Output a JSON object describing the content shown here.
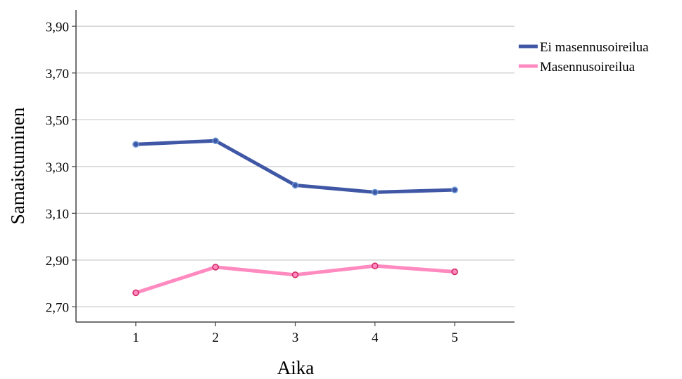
{
  "chart_data": {
    "type": "line",
    "x": [
      1,
      2,
      3,
      4,
      5
    ],
    "categories": [
      "1",
      "2",
      "3",
      "4",
      "5"
    ],
    "series": [
      {
        "name": "Ei masennusoireilua",
        "values": [
          3.395,
          3.41,
          3.22,
          3.19,
          3.2
        ],
        "color": "#3F57A5",
        "marker_color": "#6D9BD8"
      },
      {
        "name": "Masennusoireilua",
        "values": [
          2.76,
          2.87,
          2.837,
          2.875,
          2.85
        ],
        "color": "#FF8AC0",
        "marker_color": "#D1245E"
      }
    ],
    "yticks": [
      "2,70",
      "2,90",
      "3,10",
      "3,30",
      "3,50",
      "3,70",
      "3,90"
    ],
    "ytick_values": [
      2.7,
      2.9,
      3.1,
      3.3,
      3.5,
      3.7,
      3.9
    ],
    "xlabel": "Aika",
    "ylabel": "Samaistuminen",
    "ylim": [
      2.635,
      3.97
    ],
    "xlim": [
      0.25,
      5.75
    ],
    "grid": true,
    "legend_position": "right"
  }
}
